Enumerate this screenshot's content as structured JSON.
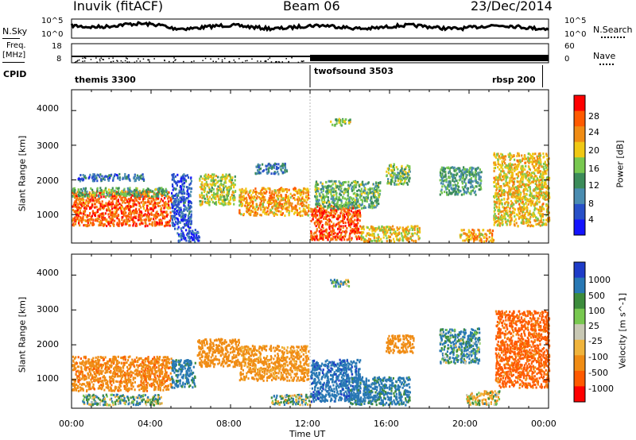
{
  "header": {
    "station": "Inuvik (fitACF)",
    "beam": "Beam 06",
    "date": "23/Dec/2014"
  },
  "noise_panel": {
    "left_label": "N.Sky",
    "right_label": "N.Search",
    "left_top_tick": "10^5",
    "left_bottom_tick": "10^0",
    "right_top_tick": "10^5",
    "right_bottom_tick": "10^0"
  },
  "freq_panel": {
    "left_label_1": "Freq.",
    "left_label_2": "[MHz]",
    "left_top_tick": "18",
    "left_bottom_tick": "8",
    "right_label": "Nave",
    "right_top_tick": "60",
    "right_bottom_tick": "0"
  },
  "cpid_panel": {
    "label": "CPID",
    "programs": [
      "themis 3300",
      "twofsound 3503",
      "rbsp 200"
    ]
  },
  "power_panel": {
    "ylabel": "Slant Range [km]",
    "yticks": [
      "1000",
      "2000",
      "3000",
      "4000"
    ],
    "colorbar_label": "Power [dB]",
    "colorbar_ticks": [
      "4",
      "8",
      "12",
      "16",
      "20",
      "24",
      "28"
    ],
    "colors": [
      "#1414ff",
      "#2850c8",
      "#4a8cb0",
      "#3c8c5a",
      "#78c850",
      "#f0c814",
      "#f08c14",
      "#ff5a00",
      "#ff0000"
    ]
  },
  "velocity_panel": {
    "ylabel": "Slant Range [km]",
    "yticks": [
      "1000",
      "2000",
      "3000",
      "4000"
    ],
    "colorbar_label": "Velocity [m s^-1]",
    "colorbar_ticks": [
      "1000",
      "500",
      "100",
      "25",
      "-25",
      "-100",
      "-500",
      "-1000"
    ],
    "colors": [
      "#1e3cc8",
      "#2878b4",
      "#3c8c3c",
      "#78c850",
      "#c8c8b4",
      "#f0b43c",
      "#f08c14",
      "#ff5a00",
      "#ff0000"
    ]
  },
  "xaxis": {
    "label": "Time UT",
    "ticks": [
      "00:00",
      "04:00",
      "08:00",
      "12:00",
      "16:00",
      "20:00",
      "00:00"
    ]
  },
  "chart_data": {
    "type": "heatmap",
    "title": "Inuvik (fitACF) Beam 06 23/Dec/2014",
    "xlabel": "Time UT",
    "ylabel": "Slant Range [km]",
    "x_range_hours": [
      0,
      24
    ],
    "y_range_km": [
      180,
      4600
    ],
    "cpid_segments": [
      {
        "name": "themis 3300",
        "start_hour": 0,
        "end_hour": 12
      },
      {
        "name": "twofsound 3503",
        "start_hour": 12,
        "end_hour": 23.7
      },
      {
        "name": "rbsp 200",
        "start_hour": 23.7,
        "end_hour": 24
      }
    ],
    "power_colorbar": {
      "label": "Power [dB]",
      "range": [
        0,
        32
      ],
      "ticks": [
        4,
        8,
        12,
        16,
        20,
        24,
        28
      ]
    },
    "velocity_colorbar": {
      "label": "Velocity [m s^-1]",
      "ticks": [
        1000,
        500,
        100,
        25,
        -25,
        -100,
        -500,
        -1000
      ]
    },
    "power_regions": [
      {
        "t0": 0.0,
        "t1": 5.0,
        "r0": 700,
        "r1": 1700,
        "value": 26
      },
      {
        "t0": 0.0,
        "t1": 4.8,
        "r0": 1550,
        "r1": 1800,
        "value": 14
      },
      {
        "t0": 0.3,
        "t1": 3.6,
        "r0": 2000,
        "r1": 2200,
        "value": 8
      },
      {
        "t0": 5.0,
        "t1": 6.0,
        "r0": 600,
        "r1": 2200,
        "value": 6
      },
      {
        "t0": 5.2,
        "t1": 6.4,
        "r0": 250,
        "r1": 600,
        "value": 5
      },
      {
        "t0": 6.4,
        "t1": 8.2,
        "r0": 1300,
        "r1": 2200,
        "value": 18
      },
      {
        "t0": 8.4,
        "t1": 11.9,
        "r0": 1000,
        "r1": 1800,
        "value": 22
      },
      {
        "t0": 9.2,
        "t1": 10.8,
        "r0": 2200,
        "r1": 2500,
        "value": 9
      },
      {
        "t0": 12.0,
        "t1": 14.5,
        "r0": 300,
        "r1": 1300,
        "value": 27
      },
      {
        "t0": 12.2,
        "t1": 15.5,
        "r0": 1200,
        "r1": 2000,
        "value": 14
      },
      {
        "t0": 13.0,
        "t1": 14.0,
        "r0": 3600,
        "r1": 3800,
        "value": 17
      },
      {
        "t0": 14.5,
        "t1": 17.5,
        "r0": 250,
        "r1": 700,
        "value": 20
      },
      {
        "t0": 15.8,
        "t1": 17.0,
        "r0": 1900,
        "r1": 2500,
        "value": 15
      },
      {
        "t0": 18.5,
        "t1": 20.6,
        "r0": 1600,
        "r1": 2400,
        "value": 12
      },
      {
        "t0": 19.5,
        "t1": 21.2,
        "r0": 250,
        "r1": 600,
        "value": 22
      },
      {
        "t0": 21.2,
        "t1": 24.0,
        "r0": 700,
        "r1": 2800,
        "value": 20
      }
    ],
    "velocity_regions": [
      {
        "t0": 0.0,
        "t1": 5.0,
        "r0": 700,
        "r1": 1700,
        "value": -400
      },
      {
        "t0": 0.5,
        "t1": 4.5,
        "r0": 300,
        "r1": 600,
        "value": 60
      },
      {
        "t0": 5.0,
        "t1": 6.2,
        "r0": 800,
        "r1": 1600,
        "value": 200
      },
      {
        "t0": 6.3,
        "t1": 8.4,
        "r0": 1400,
        "r1": 2200,
        "value": -300
      },
      {
        "t0": 8.4,
        "t1": 11.9,
        "r0": 1000,
        "r1": 2000,
        "value": -200
      },
      {
        "t0": 10.0,
        "t1": 12.0,
        "r0": 300,
        "r1": 600,
        "value": 20
      },
      {
        "t0": 12.0,
        "t1": 14.5,
        "r0": 400,
        "r1": 1600,
        "value": 400
      },
      {
        "t0": 13.0,
        "t1": 14.0,
        "r0": 3700,
        "r1": 3900,
        "value": 80
      },
      {
        "t0": 14.0,
        "t1": 17.0,
        "r0": 300,
        "r1": 1100,
        "value": 200
      },
      {
        "t0": 15.8,
        "t1": 17.2,
        "r0": 1800,
        "r1": 2300,
        "value": -300
      },
      {
        "t0": 18.5,
        "t1": 20.5,
        "r0": 1500,
        "r1": 2500,
        "value": 120
      },
      {
        "t0": 19.8,
        "t1": 21.5,
        "r0": 300,
        "r1": 700,
        "value": -30
      },
      {
        "t0": 21.3,
        "t1": 24.0,
        "r0": 800,
        "r1": 3000,
        "value": -600
      }
    ]
  }
}
